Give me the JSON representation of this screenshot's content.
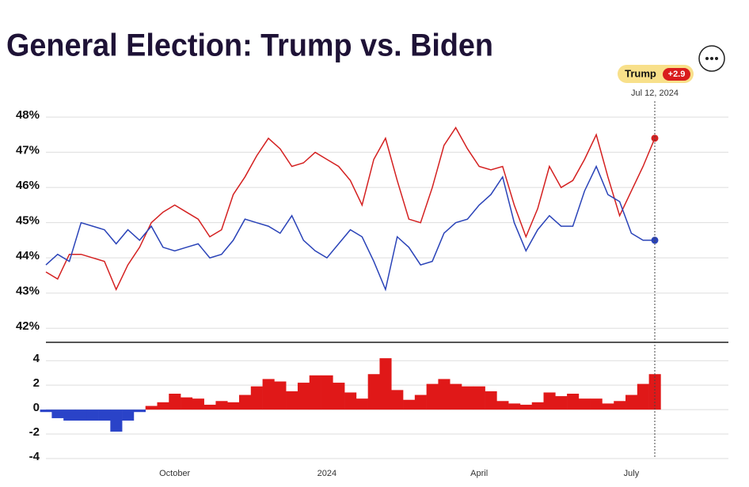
{
  "title": "General Election: Trump vs. Biden",
  "badge": {
    "leader": "Trump",
    "spread": "+2.9",
    "date": "Jul 12, 2024"
  },
  "chart_data": [
    {
      "type": "line",
      "ylim": [
        41.6,
        48.3
      ],
      "yticks": [
        {
          "value": 48,
          "label": "48%"
        },
        {
          "value": 47,
          "label": "47%"
        },
        {
          "value": 46,
          "label": "46%"
        },
        {
          "value": 45,
          "label": "45%"
        },
        {
          "value": 44,
          "label": "44%"
        },
        {
          "value": 43,
          "label": "43%"
        },
        {
          "value": 42,
          "label": "42%"
        }
      ],
      "grid": true,
      "series": [
        {
          "color": "#d42020",
          "values": [
            43.6,
            43.4,
            44.1,
            44.1,
            44.0,
            43.9,
            43.1,
            43.8,
            44.3,
            45.0,
            45.3,
            45.5,
            45.3,
            45.1,
            44.6,
            44.8,
            45.8,
            46.3,
            46.9,
            47.4,
            47.1,
            46.6,
            46.7,
            47.0,
            46.8,
            46.6,
            46.2,
            45.5,
            46.8,
            47.4,
            46.2,
            45.1,
            45.0,
            46.0,
            47.2,
            47.7,
            47.1,
            46.6,
            46.5,
            46.6,
            45.5,
            44.6,
            45.4,
            46.6,
            46.0,
            46.2,
            46.8,
            47.5,
            46.3,
            45.2,
            45.9,
            46.6,
            47.4
          ]
        },
        {
          "color": "#2a43b8",
          "values": [
            43.8,
            44.1,
            43.9,
            45.0,
            44.9,
            44.8,
            44.4,
            44.8,
            44.5,
            44.9,
            44.3,
            44.2,
            44.3,
            44.4,
            44.0,
            44.1,
            44.5,
            45.1,
            45.0,
            44.9,
            44.7,
            45.2,
            44.5,
            44.2,
            44.0,
            44.4,
            44.8,
            44.6,
            43.9,
            43.1,
            44.6,
            44.3,
            43.8,
            43.9,
            44.7,
            45.0,
            45.1,
            45.5,
            45.8,
            46.3,
            45.0,
            44.2,
            44.8,
            45.2,
            44.9,
            44.9,
            45.9,
            46.6,
            45.8,
            45.6,
            44.7,
            44.5,
            44.5
          ]
        }
      ]
    },
    {
      "type": "bar",
      "categories": [
        null,
        null,
        null,
        null,
        null,
        null,
        null,
        null,
        null,
        null,
        null,
        "October",
        null,
        null,
        null,
        null,
        null,
        null,
        null,
        null,
        null,
        null,
        null,
        null,
        "2024",
        null,
        null,
        null,
        null,
        null,
        null,
        null,
        null,
        null,
        null,
        null,
        null,
        "April",
        null,
        null,
        null,
        null,
        null,
        null,
        null,
        null,
        null,
        null,
        null,
        null,
        "July",
        null,
        null
      ],
      "values": [
        -0.2,
        -0.7,
        -0.9,
        -0.9,
        -0.9,
        -0.9,
        -1.8,
        -0.9,
        -0.2,
        0.3,
        0.6,
        1.3,
        1.0,
        0.9,
        0.4,
        0.7,
        0.6,
        1.2,
        1.9,
        2.5,
        2.3,
        1.5,
        2.2,
        2.8,
        2.8,
        2.2,
        1.4,
        0.9,
        2.9,
        4.2,
        1.6,
        0.8,
        1.2,
        2.1,
        2.5,
        2.1,
        1.9,
        1.9,
        1.5,
        0.7,
        0.5,
        0.4,
        0.6,
        1.4,
        1.1,
        1.3,
        0.9,
        0.9,
        0.5,
        0.7,
        1.2,
        2.1,
        2.9
      ],
      "ylim": [
        -4,
        5.5
      ],
      "yticks": [
        4,
        2,
        0,
        -2,
        -4
      ],
      "grid": true,
      "colors": {
        "positive": "#e01818",
        "negative": "#2a43c8"
      }
    }
  ]
}
